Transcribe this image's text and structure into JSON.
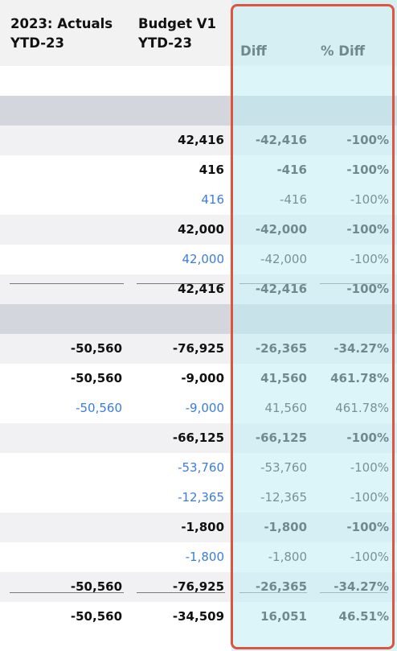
{
  "header": {
    "col1_line1": "2023: Actuals",
    "col1_line2": "YTD-23",
    "col2_line1": "Budget V1",
    "col2_line2": "YTD-23",
    "col3": "Diff",
    "col4": "% Diff"
  },
  "rows": [
    {
      "style": "white",
      "c1": "",
      "c2": "",
      "c3": "",
      "c4": ""
    },
    {
      "style": "section",
      "c1": "",
      "c2": "",
      "c3": "",
      "c4": ""
    },
    {
      "style": "light",
      "weight": "bold",
      "c1": "",
      "c2": "42,416",
      "c3": "-42,416",
      "c4": "-100%"
    },
    {
      "style": "white",
      "weight": "bold",
      "c1": "",
      "c2": "416",
      "c3": "-416",
      "c4": "-100%"
    },
    {
      "style": "white",
      "weight": "detail",
      "c1": "",
      "c2": "416",
      "c3": "-416",
      "c4": "-100%"
    },
    {
      "style": "light",
      "weight": "bold",
      "c1": "",
      "c2": "42,000",
      "c3": "-42,000",
      "c4": "-100%"
    },
    {
      "style": "white",
      "weight": "detail",
      "c1": "",
      "c2": "42,000",
      "c3": "-42,000",
      "c4": "-100%"
    },
    {
      "style": "light",
      "weight": "bold",
      "c1": "",
      "c2": "42,416",
      "c3": "-42,416",
      "c4": "-100%"
    },
    {
      "style": "section",
      "c1": "",
      "c2": "",
      "c3": "",
      "c4": ""
    },
    {
      "style": "light",
      "weight": "bold",
      "c1": "-50,560",
      "c2": "-76,925",
      "c3": "-26,365",
      "c4": "-34.27%"
    },
    {
      "style": "white",
      "weight": "bold",
      "c1": "-50,560",
      "c2": "-9,000",
      "c3": "41,560",
      "c4": "461.78%"
    },
    {
      "style": "white",
      "weight": "detail",
      "c1": "-50,560",
      "c2": "-9,000",
      "c3": "41,560",
      "c4": "461.78%"
    },
    {
      "style": "light",
      "weight": "bold",
      "c1": "",
      "c2": "-66,125",
      "c3": "-66,125",
      "c4": "-100%"
    },
    {
      "style": "white",
      "weight": "detail",
      "c1": "",
      "c2": "-53,760",
      "c3": "-53,760",
      "c4": "-100%"
    },
    {
      "style": "white",
      "weight": "detail",
      "c1": "",
      "c2": "-12,365",
      "c3": "-12,365",
      "c4": "-100%"
    },
    {
      "style": "light",
      "weight": "bold",
      "c1": "",
      "c2": "-1,800",
      "c3": "-1,800",
      "c4": "-100%"
    },
    {
      "style": "white",
      "weight": "detail",
      "c1": "",
      "c2": "-1,800",
      "c3": "-1,800",
      "c4": "-100%"
    },
    {
      "style": "light",
      "weight": "bold",
      "c1": "-50,560",
      "c2": "-76,925",
      "c3": "-26,365",
      "c4": "-34.27%"
    },
    {
      "style": "white",
      "weight": "bold",
      "c1": "-50,560",
      "c2": "-34,509",
      "c3": "16,051",
      "c4": "46.51%"
    }
  ],
  "colors": {
    "highlight_border": "#e0533c",
    "highlight_fill": "#bfecf4",
    "link_text": "#3b7ddd",
    "section_band": "#d3d6dc"
  }
}
